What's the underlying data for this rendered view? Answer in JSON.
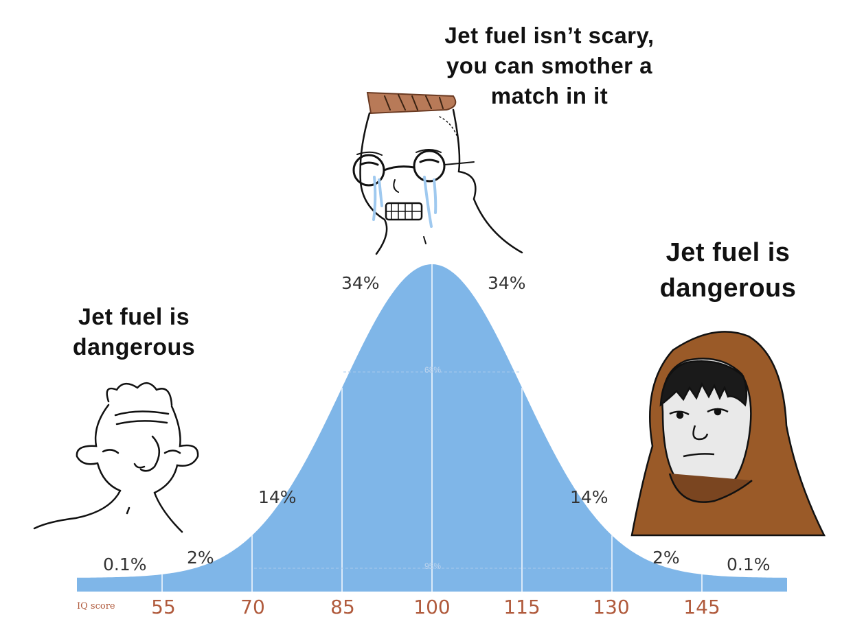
{
  "captions": {
    "top": [
      "Jet fuel isn’t scary,",
      "you can smother a",
      "match in it"
    ],
    "left": [
      "Jet fuel is",
      "dangerous"
    ],
    "right": [
      "Jet fuel is",
      "dangerous"
    ]
  },
  "percentages": {
    "far_left": "0.1%",
    "left_2": "2%",
    "left_14": "14%",
    "left_34": "34%",
    "right_34": "34%",
    "right_14": "14%",
    "right_2": "2%",
    "far_right": "0.1%"
  },
  "bands": {
    "inner": "68%",
    "outer": "95%"
  },
  "axis": {
    "label": "IQ score",
    "ticks": [
      "55",
      "70",
      "85",
      "100",
      "115",
      "130",
      "145"
    ]
  },
  "colors": {
    "curve_fill": "#7fb6e8",
    "tick_text": "#b05a3c",
    "hood": "#9a5a28",
    "hair": "#b87a58"
  },
  "characters": [
    "simple-wojak-left",
    "glasses-wojak-crying-center",
    "hooded-wojak-right"
  ]
}
